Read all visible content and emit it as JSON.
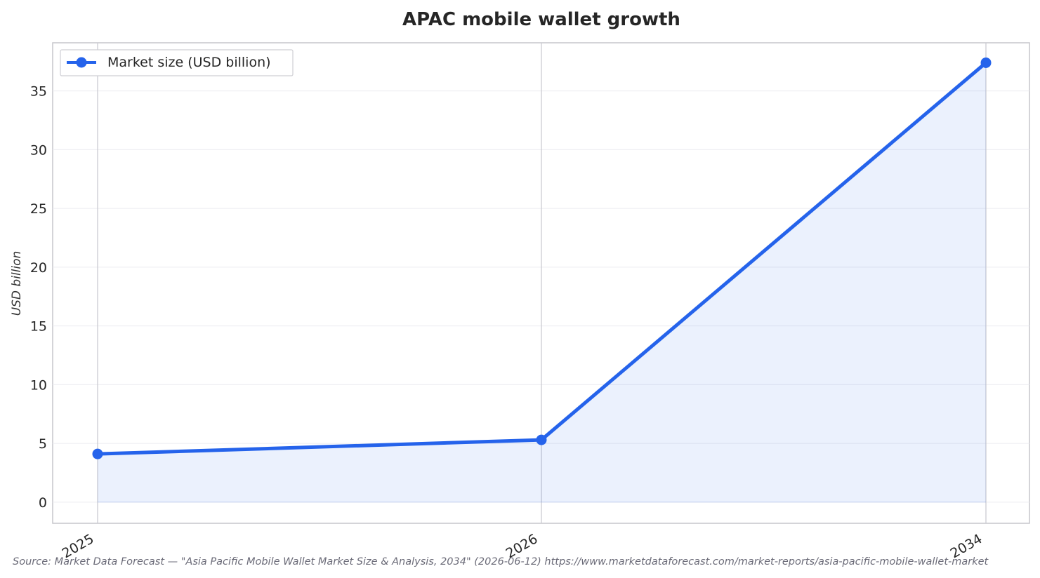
{
  "chart_data": {
    "type": "line",
    "title": "APAC mobile wallet growth",
    "xlabel": "",
    "ylabel": "USD billion",
    "x": [
      "2025",
      "2026",
      "2034"
    ],
    "series": [
      {
        "name": "Market size (USD billion)",
        "values": [
          4.1,
          5.3,
          37.4
        ],
        "color": "#2563eb",
        "fill_color": "#2563eb",
        "area_fill": true
      }
    ],
    "ylim": [
      -1.8,
      39.1
    ],
    "yticks": [
      0,
      5,
      10,
      15,
      20,
      25,
      30,
      35
    ],
    "grid": true,
    "legend_position": "top-left",
    "source": "Source: Market Data Forecast — \"Asia Pacific Mobile Wallet Market Size & Analysis, 2034\" (2026-06-12) https://www.marketdataforecast.com/market-reports/asia-pacific-mobile-wallet-market"
  }
}
